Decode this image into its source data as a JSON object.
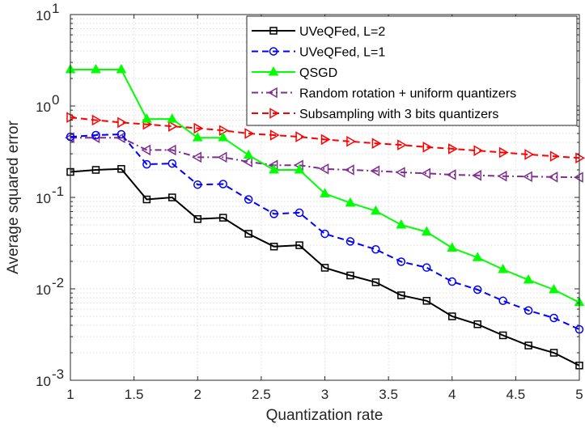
{
  "chart_data": {
    "type": "line",
    "title": "",
    "xlabel": "Quantization rate",
    "ylabel": "Average squared error",
    "xlim": [
      1,
      5
    ],
    "ylim": [
      0.001,
      10
    ],
    "yscale": "log",
    "grid": true,
    "legend_position": "top-right",
    "xticks": [
      1,
      1.5,
      2,
      2.5,
      3,
      3.5,
      4,
      4.5,
      5
    ],
    "xtick_labels": [
      "1",
      "1.5",
      "2",
      "2.5",
      "3",
      "3.5",
      "4",
      "4.5",
      "5"
    ],
    "ytick_labels": [
      {
        "base": "10",
        "exp": "-3"
      },
      {
        "base": "10",
        "exp": "-2"
      },
      {
        "base": "10",
        "exp": "-1"
      },
      {
        "base": "10",
        "exp": "0"
      },
      {
        "base": "10",
        "exp": "1"
      }
    ],
    "x": [
      1.0,
      1.2,
      1.4,
      1.6,
      1.8,
      2.0,
      2.2,
      2.4,
      2.6,
      2.8,
      3.0,
      3.2,
      3.4,
      3.6,
      3.8,
      4.0,
      4.2,
      4.4,
      4.6,
      4.8,
      5.0
    ],
    "series": [
      {
        "name": "UVeQFed, L=2",
        "color": "#000000",
        "line_style": "solid",
        "marker": "square",
        "values": [
          0.19,
          0.2,
          0.205,
          0.095,
          0.1,
          0.058,
          0.06,
          0.04,
          0.029,
          0.03,
          0.017,
          0.014,
          0.0118,
          0.0085,
          0.0074,
          0.005,
          0.0041,
          0.0031,
          0.0024,
          0.002,
          0.00145
        ]
      },
      {
        "name": "UVeQFed, L=1",
        "color": "#0000ff",
        "line_style": "dashed",
        "marker": "circle",
        "values": [
          0.46,
          0.48,
          0.49,
          0.23,
          0.235,
          0.138,
          0.14,
          0.095,
          0.066,
          0.068,
          0.04,
          0.033,
          0.027,
          0.0198,
          0.0171,
          0.012,
          0.0098,
          0.0074,
          0.0058,
          0.0048,
          0.0036
        ]
      },
      {
        "name": "QSGD",
        "color": "#00ff00",
        "line_style": "solid",
        "marker": "triangle-up",
        "values": [
          2.5,
          2.5,
          2.5,
          0.72,
          0.72,
          0.45,
          0.45,
          0.29,
          0.2,
          0.2,
          0.11,
          0.087,
          0.071,
          0.05,
          0.042,
          0.028,
          0.022,
          0.0163,
          0.0125,
          0.0098,
          0.0071
        ]
      },
      {
        "name": "Random rotation + uniform quantizers",
        "color": "#7e2f8e",
        "line_style": "dash-dot",
        "marker": "triangle-left",
        "values": [
          0.45,
          0.45,
          0.45,
          0.33,
          0.33,
          0.275,
          0.275,
          0.245,
          0.225,
          0.225,
          0.205,
          0.2,
          0.195,
          0.188,
          0.183,
          0.177,
          0.174,
          0.171,
          0.169,
          0.167,
          0.166
        ]
      },
      {
        "name": "Subsampling with 3 bits quantizers",
        "color": "#ff0000",
        "line_style": "dashed",
        "marker": "triangle-right",
        "values": [
          0.75,
          0.7,
          0.66,
          0.63,
          0.6,
          0.57,
          0.54,
          0.5,
          0.48,
          0.46,
          0.43,
          0.41,
          0.39,
          0.375,
          0.355,
          0.34,
          0.325,
          0.31,
          0.295,
          0.282,
          0.27
        ]
      }
    ]
  }
}
